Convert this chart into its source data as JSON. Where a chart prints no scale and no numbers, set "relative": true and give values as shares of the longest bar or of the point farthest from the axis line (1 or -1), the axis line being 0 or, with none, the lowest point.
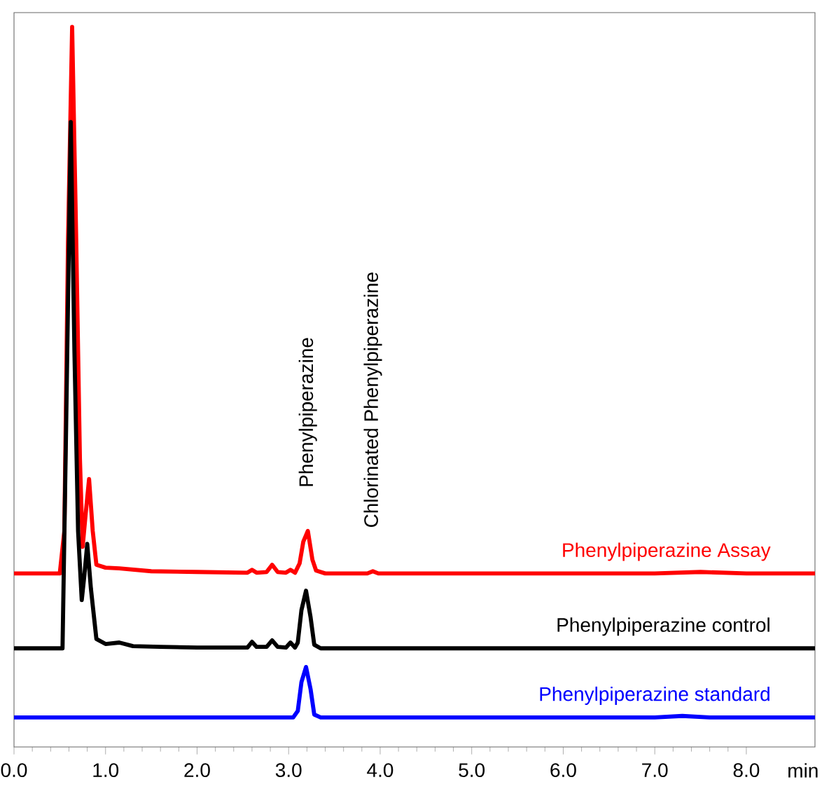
{
  "chart_data": {
    "type": "line",
    "relative": true,
    "xlabel": "min",
    "xlim": [
      0,
      8.75
    ],
    "xticks": [
      {
        "value": 0,
        "label": "0.0"
      },
      {
        "value": 1,
        "label": "1.0"
      },
      {
        "value": 2,
        "label": "2.0"
      },
      {
        "value": 3,
        "label": "3.0"
      },
      {
        "value": 4,
        "label": "4.0"
      },
      {
        "value": 5,
        "label": "5.0"
      },
      {
        "value": 6,
        "label": "6.0"
      },
      {
        "value": 7,
        "label": "7.0"
      },
      {
        "value": 8,
        "label": "8.0"
      }
    ],
    "annotations": [
      {
        "text": "Phenylpiperazine",
        "x": 3.21,
        "y": 0.3
      },
      {
        "text": "Chlorinated Phenylpiperazine",
        "x": 3.92,
        "y": 0.244
      }
    ],
    "series": [
      {
        "name": "Phenylpiperazine Assay",
        "color": "#ff0000",
        "x": [
          0,
          0.5,
          0.55,
          0.59,
          0.635,
          0.68,
          0.72,
          0.75,
          0.78,
          0.82,
          0.86,
          0.9,
          1.0,
          1.15,
          1.5,
          2.0,
          2.55,
          2.6,
          2.65,
          2.76,
          2.82,
          2.88,
          2.97,
          3.02,
          3.07,
          3.12,
          3.16,
          3.21,
          3.26,
          3.3,
          3.4,
          3.86,
          3.92,
          3.98,
          5.0,
          6.0,
          7.0,
          7.5,
          8.0,
          8.75
        ],
        "values": [
          0.241,
          0.241,
          0.3,
          0.7,
          1.0,
          0.7,
          0.4,
          0.278,
          0.32,
          0.372,
          0.3,
          0.253,
          0.249,
          0.248,
          0.244,
          0.243,
          0.242,
          0.246,
          0.242,
          0.243,
          0.253,
          0.243,
          0.242,
          0.246,
          0.242,
          0.255,
          0.285,
          0.3,
          0.26,
          0.245,
          0.241,
          0.241,
          0.244,
          0.241,
          0.241,
          0.241,
          0.241,
          0.243,
          0.241,
          0.241
        ]
      },
      {
        "name": "Phenylpiperazine control",
        "color": "#000000",
        "x": [
          0,
          0.53,
          0.57,
          0.62,
          0.66,
          0.7,
          0.74,
          0.77,
          0.8,
          0.84,
          0.9,
          1.0,
          1.15,
          1.3,
          1.6,
          2.0,
          2.55,
          2.6,
          2.65,
          2.76,
          2.82,
          2.88,
          2.97,
          3.02,
          3.07,
          3.1,
          3.14,
          3.19,
          3.24,
          3.28,
          3.35,
          4.0,
          5.0,
          6.0,
          7.0,
          8.0,
          8.75
        ],
        "values": [
          0.137,
          0.137,
          0.45,
          0.868,
          0.55,
          0.3,
          0.204,
          0.24,
          0.282,
          0.22,
          0.15,
          0.143,
          0.145,
          0.14,
          0.139,
          0.138,
          0.138,
          0.146,
          0.139,
          0.139,
          0.148,
          0.139,
          0.138,
          0.145,
          0.138,
          0.145,
          0.19,
          0.217,
          0.18,
          0.142,
          0.137,
          0.137,
          0.137,
          0.137,
          0.137,
          0.137,
          0.137
        ]
      },
      {
        "name": "Phenylpiperazine standard",
        "color": "#0000ff",
        "x": [
          0,
          3.05,
          3.1,
          3.14,
          3.19,
          3.24,
          3.28,
          3.35,
          7.0,
          7.3,
          7.6,
          8.75
        ],
        "values": [
          0.041,
          0.041,
          0.05,
          0.09,
          0.111,
          0.08,
          0.045,
          0.041,
          0.041,
          0.043,
          0.041,
          0.041
        ]
      }
    ]
  }
}
